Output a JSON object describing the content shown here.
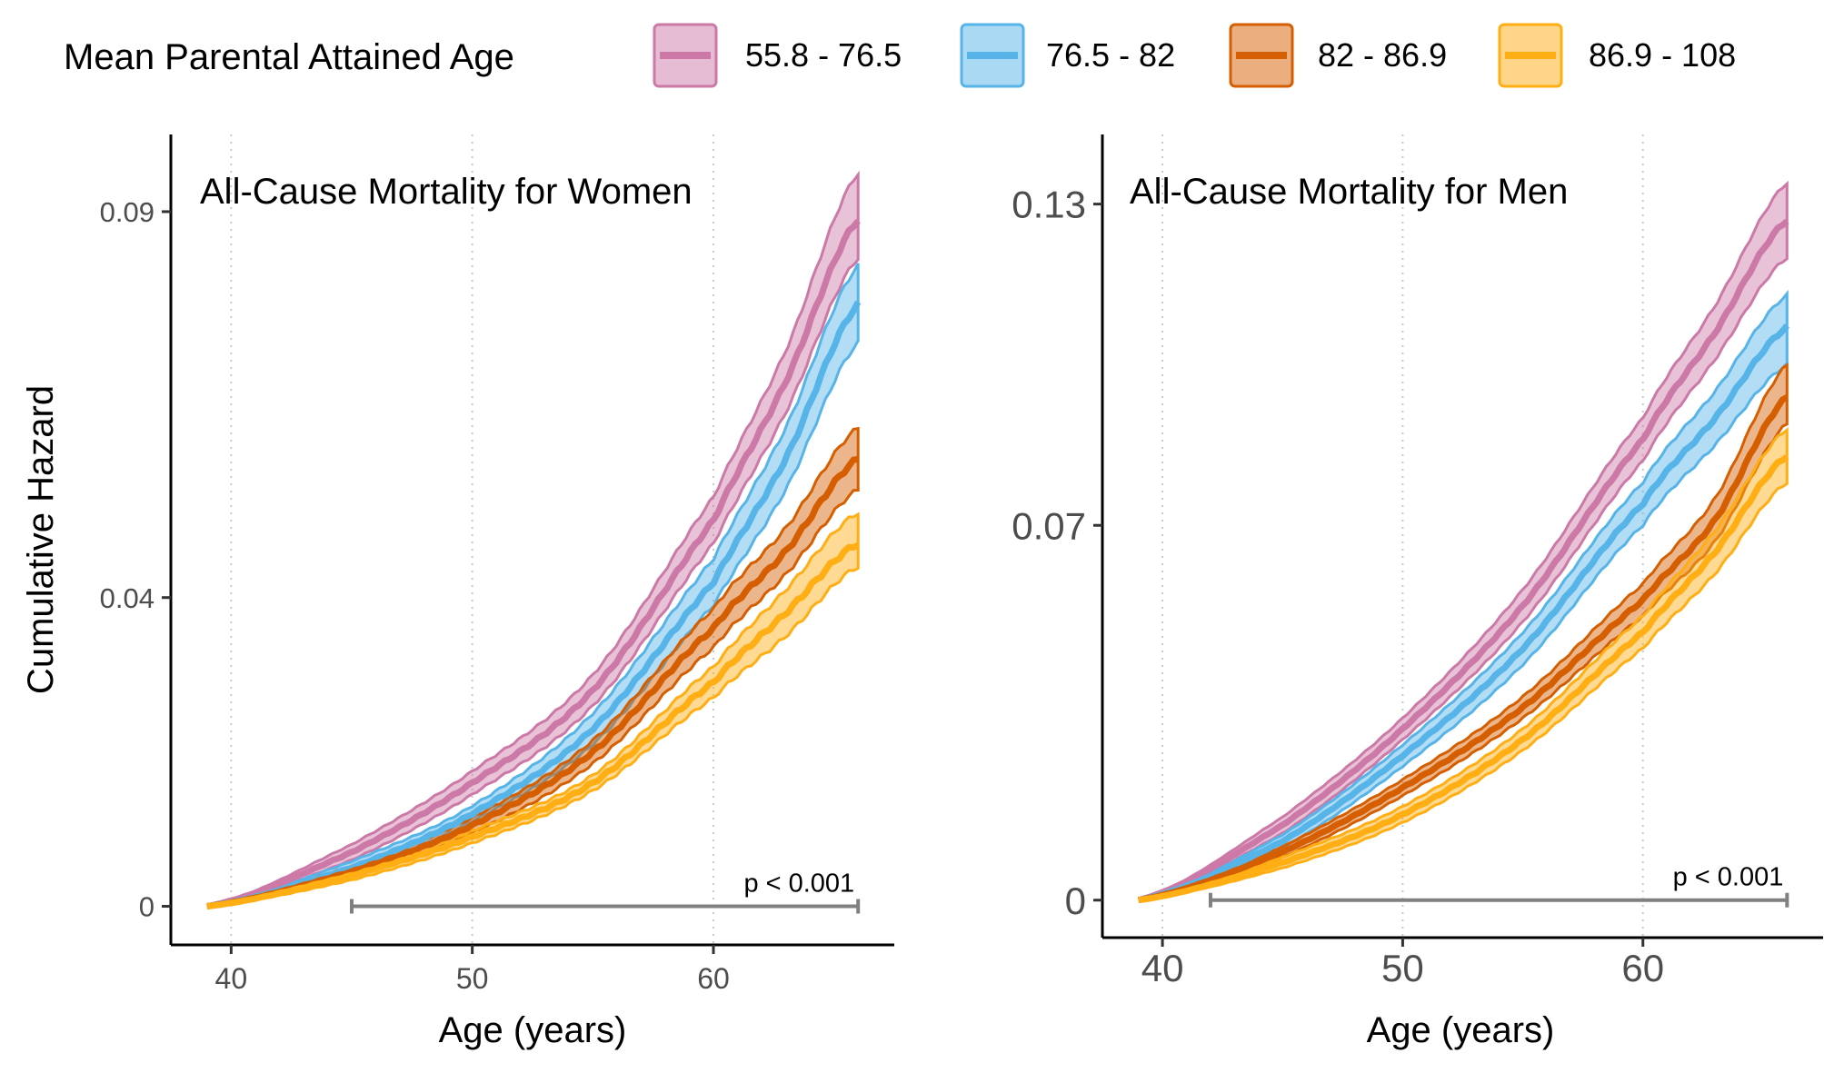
{
  "legend": {
    "title": "Mean Parental Attained Age",
    "entries": [
      {
        "label": "55.8 - 76.5",
        "color": "#CC79A7"
      },
      {
        "label": "76.5 - 82",
        "color": "#56B4E9"
      },
      {
        "label": "82 - 86.9",
        "color": "#D55E00"
      },
      {
        "label": "86.9 - 108",
        "color": "#FFAE14"
      }
    ]
  },
  "chart_data": [
    {
      "type": "area",
      "title": "All-Cause Mortality for Women",
      "xlabel": "Age (years)",
      "ylabel": "Cumulative Hazard",
      "xlim": [
        37.5,
        67.5
      ],
      "ylim": [
        -0.005,
        0.1
      ],
      "xticks": [
        {
          "value": 40,
          "label": "40"
        },
        {
          "value": 50,
          "label": "50"
        },
        {
          "value": 60,
          "label": "60"
        }
      ],
      "yticks": [
        {
          "value": 0,
          "label": "0"
        },
        {
          "value": 0.04,
          "label": "0.04"
        },
        {
          "value": 0.09,
          "label": "0.09"
        }
      ],
      "grid": "vertical dotted at x ticks",
      "x": [
        39,
        45,
        50,
        55,
        60,
        63,
        66
      ],
      "series": [
        {
          "name": "55.8 - 76.5",
          "values": [
            0,
            0.007,
            0.016,
            0.028,
            0.05,
            0.068,
            0.089
          ],
          "lower": [
            0,
            0.006,
            0.0145,
            0.026,
            0.047,
            0.064,
            0.084
          ],
          "upper": [
            0,
            0.008,
            0.0175,
            0.03,
            0.053,
            0.072,
            0.095
          ]
        },
        {
          "name": "76.5 - 82",
          "values": [
            0,
            0.005,
            0.012,
            0.023,
            0.042,
            0.058,
            0.078
          ],
          "lower": [
            0,
            0.0043,
            0.011,
            0.021,
            0.039,
            0.054,
            0.073
          ],
          "upper": [
            0,
            0.0058,
            0.013,
            0.025,
            0.045,
            0.062,
            0.083
          ]
        },
        {
          "name": "82 - 86.9",
          "values": [
            0,
            0.0045,
            0.0105,
            0.02,
            0.036,
            0.046,
            0.058
          ],
          "lower": [
            0,
            0.0038,
            0.0095,
            0.0185,
            0.0335,
            0.043,
            0.054
          ],
          "upper": [
            0,
            0.0052,
            0.0115,
            0.0215,
            0.0385,
            0.049,
            0.062
          ]
        },
        {
          "name": "86.9 - 108",
          "values": [
            0,
            0.004,
            0.009,
            0.016,
            0.029,
            0.038,
            0.047
          ],
          "lower": [
            0,
            0.0034,
            0.0082,
            0.015,
            0.027,
            0.035,
            0.044
          ],
          "upper": [
            0,
            0.0046,
            0.0098,
            0.017,
            0.031,
            0.041,
            0.051
          ]
        }
      ],
      "annotation": {
        "text": "p < 0.001",
        "bracket": [
          45,
          66
        ]
      }
    },
    {
      "type": "area",
      "title": "All-Cause Mortality for Men",
      "xlabel": "Age (years)",
      "ylabel": "",
      "xlim": [
        37.5,
        67.5
      ],
      "ylim": [
        -0.007,
        0.143
      ],
      "xticks": [
        {
          "value": 40,
          "label": "40"
        },
        {
          "value": 50,
          "label": "50"
        },
        {
          "value": 60,
          "label": "60"
        }
      ],
      "yticks": [
        {
          "value": 0,
          "label": "0"
        },
        {
          "value": 0.07,
          "label": "0.07"
        },
        {
          "value": 0.13,
          "label": "0.13"
        }
      ],
      "grid": "vertical dotted at x ticks",
      "x": [
        39,
        45,
        50,
        55,
        60,
        63,
        66
      ],
      "series": [
        {
          "name": "55.8 - 76.5",
          "values": [
            0,
            0.014,
            0.032,
            0.055,
            0.086,
            0.106,
            0.127
          ],
          "lower": [
            0,
            0.0125,
            0.03,
            0.052,
            0.082,
            0.101,
            0.12
          ],
          "upper": [
            0,
            0.0155,
            0.034,
            0.058,
            0.09,
            0.111,
            0.134
          ]
        },
        {
          "name": "76.5 - 82",
          "values": [
            0,
            0.011,
            0.027,
            0.047,
            0.074,
            0.09,
            0.107
          ],
          "lower": [
            0,
            0.0098,
            0.025,
            0.044,
            0.07,
            0.085,
            0.1
          ],
          "upper": [
            0,
            0.0122,
            0.029,
            0.05,
            0.078,
            0.095,
            0.113
          ]
        },
        {
          "name": "82 - 86.9",
          "values": [
            0,
            0.009,
            0.021,
            0.036,
            0.056,
            0.071,
            0.094
          ],
          "lower": [
            0,
            0.008,
            0.0195,
            0.034,
            0.053,
            0.067,
            0.089
          ],
          "upper": [
            0,
            0.01,
            0.0225,
            0.038,
            0.059,
            0.075,
            0.1
          ]
        },
        {
          "name": "86.9 - 108",
          "values": [
            0,
            0.007,
            0.016,
            0.03,
            0.05,
            0.065,
            0.083
          ],
          "lower": [
            0,
            0.006,
            0.0145,
            0.028,
            0.047,
            0.061,
            0.078
          ],
          "upper": [
            0,
            0.008,
            0.0175,
            0.032,
            0.053,
            0.069,
            0.088
          ]
        }
      ],
      "annotation": {
        "text": "p < 0.001",
        "bracket": [
          42,
          66
        ]
      }
    }
  ]
}
